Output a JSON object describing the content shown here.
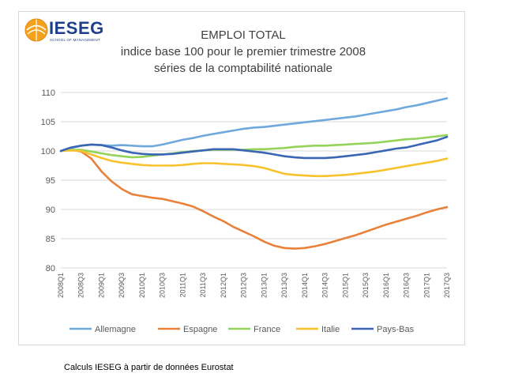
{
  "logo": {
    "word": "IESEG",
    "sub": "SCHOOL OF MANAGEMENT"
  },
  "source_note": "Calculs IESEG à partir de données Eurostat",
  "colors": {
    "Allemagne": "#6fa8dc",
    "Espagne": "#e9813a",
    "France": "#93d35a",
    "Italie": "#f7c22d",
    "Pays-Bas": "#3a66b5",
    "grid": "#d9d9d9",
    "axis_text": "#595959"
  },
  "chart_data": {
    "type": "line",
    "title": "EMPLOI TOTAL",
    "subtitle": "indice base 100 pour le premier trimestre 2008",
    "subtitle2": "séries de la comptabilité nationale",
    "xlabel": "",
    "ylabel": "",
    "ylim": [
      80,
      110
    ],
    "yticks": [
      80,
      85,
      90,
      95,
      100,
      105,
      110
    ],
    "grid": true,
    "legend": "bottom",
    "x": [
      "2008Q1",
      "2008Q2",
      "2008Q3",
      "2008Q4",
      "2009Q1",
      "2009Q2",
      "2009Q3",
      "2009Q4",
      "2010Q1",
      "2010Q2",
      "2010Q3",
      "2010Q4",
      "2011Q1",
      "2011Q2",
      "2011Q3",
      "2011Q4",
      "2012Q1",
      "2012Q2",
      "2012Q3",
      "2012Q4",
      "2013Q1",
      "2013Q2",
      "2013Q3",
      "2013Q4",
      "2014Q1",
      "2014Q2",
      "2014Q3",
      "2014Q4",
      "2015Q1",
      "2015Q2",
      "2015Q3",
      "2015Q4",
      "2016Q1",
      "2016Q2",
      "2016Q3",
      "2016Q4",
      "2017Q1",
      "2017Q2",
      "2017Q3"
    ],
    "xtick_labels": [
      "2008Q1",
      "2008Q3",
      "2009Q1",
      "2009Q3",
      "2010Q1",
      "2010Q3",
      "2011Q1",
      "2011Q3",
      "2012Q1",
      "2012Q3",
      "2013Q1",
      "2013Q3",
      "2014Q1",
      "2014Q3",
      "2015Q1",
      "2015Q3",
      "2016Q1",
      "2016Q3",
      "2017Q1",
      "2017Q3"
    ],
    "series": [
      {
        "name": "Allemagne",
        "values": [
          100.0,
          100.5,
          100.9,
          101.1,
          101.0,
          100.9,
          101.0,
          100.9,
          100.8,
          100.8,
          101.1,
          101.5,
          101.9,
          102.2,
          102.6,
          102.9,
          103.2,
          103.5,
          103.8,
          104.0,
          104.1,
          104.3,
          104.5,
          104.7,
          104.9,
          105.1,
          105.3,
          105.5,
          105.7,
          105.9,
          106.2,
          106.5,
          106.8,
          107.1,
          107.5,
          107.8,
          108.2,
          108.6,
          109.0
        ]
      },
      {
        "name": "Espagne",
        "values": [
          100.0,
          100.2,
          99.9,
          98.7,
          96.5,
          94.8,
          93.5,
          92.6,
          92.3,
          92.0,
          91.8,
          91.4,
          91.0,
          90.5,
          89.7,
          88.8,
          88.0,
          87.0,
          86.2,
          85.4,
          84.5,
          83.8,
          83.4,
          83.3,
          83.4,
          83.7,
          84.1,
          84.6,
          85.1,
          85.6,
          86.2,
          86.8,
          87.4,
          87.9,
          88.4,
          88.9,
          89.5,
          90.0,
          90.4
        ]
      },
      {
        "name": "France",
        "values": [
          100.0,
          100.2,
          100.2,
          99.9,
          99.6,
          99.3,
          99.1,
          98.9,
          99.0,
          99.2,
          99.4,
          99.6,
          99.8,
          100.0,
          100.1,
          100.2,
          100.2,
          100.2,
          100.2,
          100.3,
          100.3,
          100.4,
          100.5,
          100.7,
          100.8,
          100.9,
          100.9,
          101.0,
          101.1,
          101.2,
          101.3,
          101.4,
          101.6,
          101.8,
          102.0,
          102.1,
          102.3,
          102.5,
          102.7
        ]
      },
      {
        "name": "Italie",
        "values": [
          100.0,
          100.1,
          100.0,
          99.4,
          98.8,
          98.3,
          98.0,
          97.8,
          97.6,
          97.5,
          97.5,
          97.5,
          97.6,
          97.8,
          97.9,
          97.9,
          97.8,
          97.7,
          97.6,
          97.4,
          97.1,
          96.6,
          96.1,
          95.9,
          95.8,
          95.7,
          95.7,
          95.8,
          95.9,
          96.1,
          96.3,
          96.5,
          96.8,
          97.1,
          97.4,
          97.7,
          98.0,
          98.3,
          98.7
        ]
      },
      {
        "name": "Pays-Bas",
        "values": [
          100.0,
          100.6,
          100.9,
          101.1,
          101.0,
          100.6,
          100.1,
          99.7,
          99.5,
          99.4,
          99.4,
          99.5,
          99.7,
          99.9,
          100.1,
          100.3,
          100.3,
          100.3,
          100.1,
          99.9,
          99.7,
          99.4,
          99.1,
          98.9,
          98.8,
          98.8,
          98.8,
          98.9,
          99.1,
          99.3,
          99.5,
          99.8,
          100.1,
          100.4,
          100.6,
          101.0,
          101.4,
          101.8,
          102.4
        ]
      }
    ]
  }
}
